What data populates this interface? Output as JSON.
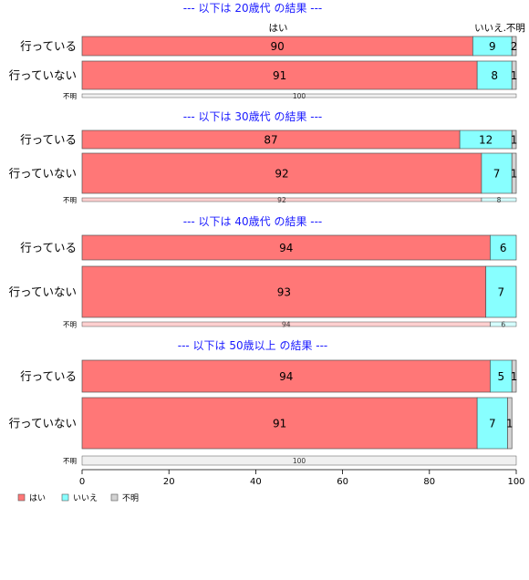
{
  "chart_data": {
    "type": "bar",
    "stacked": true,
    "orientation": "horizontal",
    "xlim": [
      0,
      100
    ],
    "xticks": [
      0,
      20,
      40,
      60,
      80,
      100
    ],
    "category_labels": [
      "はい",
      "いいえ",
      "不明"
    ],
    "legend": {
      "position": "bottom-left",
      "items": [
        {
          "label": "はい",
          "color": "#ff7777"
        },
        {
          "label": "いいえ",
          "color": "#88ffff"
        },
        {
          "label": "不明",
          "color": "#d3d3d3"
        }
      ]
    },
    "panels": [
      {
        "title": "--- 以下は 20歳代 の結果 ---",
        "rows": [
          {
            "label": "行っている",
            "values": [
              90,
              9,
              2
            ],
            "texts": [
              "90",
              "9",
              "2"
            ],
            "size": "large"
          },
          {
            "label": "行っていない",
            "values": [
              91,
              8,
              1
            ],
            "texts": [
              "91",
              "8",
              "1"
            ],
            "size": "large"
          },
          {
            "label": "不明",
            "values": [
              0,
              0,
              100
            ],
            "texts": [
              "",
              "",
              "100"
            ],
            "size": "small"
          }
        ]
      },
      {
        "title": "--- 以下は 30歳代 の結果 ---",
        "rows": [
          {
            "label": "行っている",
            "values": [
              87,
              12,
              1
            ],
            "texts": [
              "87",
              "12",
              "1"
            ],
            "size": "large"
          },
          {
            "label": "行っていない",
            "values": [
              92,
              7,
              1
            ],
            "texts": [
              "92",
              "7",
              "1"
            ],
            "size": "large"
          },
          {
            "label": "不明",
            "values": [
              92,
              8,
              0
            ],
            "texts": [
              "92",
              "8",
              ""
            ],
            "size": "small"
          }
        ]
      },
      {
        "title": "--- 以下は 40歳代 の結果 ---",
        "rows": [
          {
            "label": "行っている",
            "values": [
              94,
              6,
              0.5
            ],
            "texts": [
              "94",
              "6",
              ""
            ],
            "size": "large"
          },
          {
            "label": "行っていない",
            "values": [
              93,
              7,
              0
            ],
            "texts": [
              "93",
              "7",
              ""
            ],
            "size": "large"
          },
          {
            "label": "不明",
            "values": [
              94,
              6,
              0
            ],
            "texts": [
              "94",
              "6",
              ""
            ],
            "size": "small"
          }
        ]
      },
      {
        "title": "--- 以下は 50歳以上 の結果 ---",
        "rows": [
          {
            "label": "行っている",
            "values": [
              94,
              5,
              1
            ],
            "texts": [
              "94",
              "5",
              "1"
            ],
            "size": "large"
          },
          {
            "label": "行っていない",
            "values": [
              91,
              7,
              1
            ],
            "texts": [
              "91",
              "7",
              "1"
            ],
            "size": "large"
          },
          {
            "label": "不明",
            "values": [
              0,
              0,
              100
            ],
            "texts": [
              "",
              "",
              "100"
            ],
            "size": "small"
          }
        ]
      }
    ]
  }
}
